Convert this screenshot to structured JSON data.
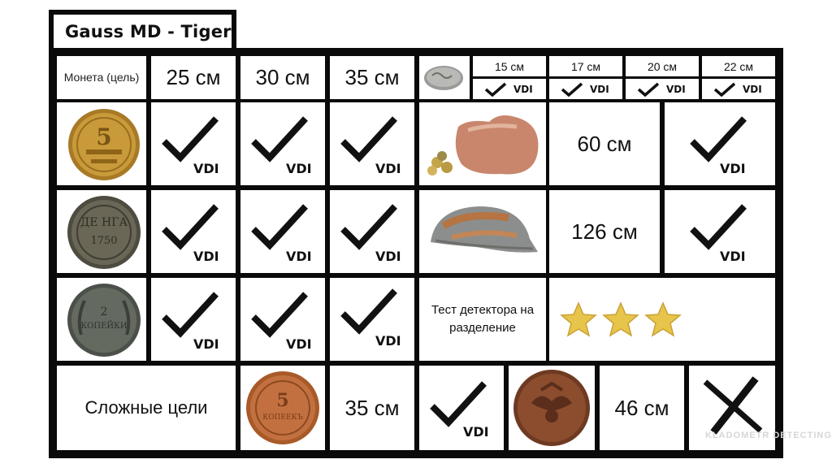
{
  "title": "Gauss MD - Tiger",
  "header": {
    "coin_target": "Монета (цель)",
    "depths": [
      "25 см",
      "30 см",
      "35 см"
    ],
    "small_depths": [
      "15 см",
      "17 см",
      "20 см",
      "22 см"
    ],
    "vdi": "VDI"
  },
  "rows": {
    "vdi": "VDI",
    "helmet_pot_depth_1": "60 см",
    "helmet_depth_2": "126 см",
    "separation_test": "Тест детектора на разделение",
    "stars": 3
  },
  "bottom": {
    "complex_targets": "Сложные цели",
    "depth_1": "35 см",
    "depth_2": "46 см",
    "vdi": "VDI"
  },
  "watermark": "KLADOMETR DETECTING",
  "colors": {
    "grid": "#0a0a0a",
    "star": "#e7c44a",
    "coin_copper": "#b5652e",
    "coin_brass": "#c99a3a",
    "coin_dark": "#5d5a4c"
  }
}
